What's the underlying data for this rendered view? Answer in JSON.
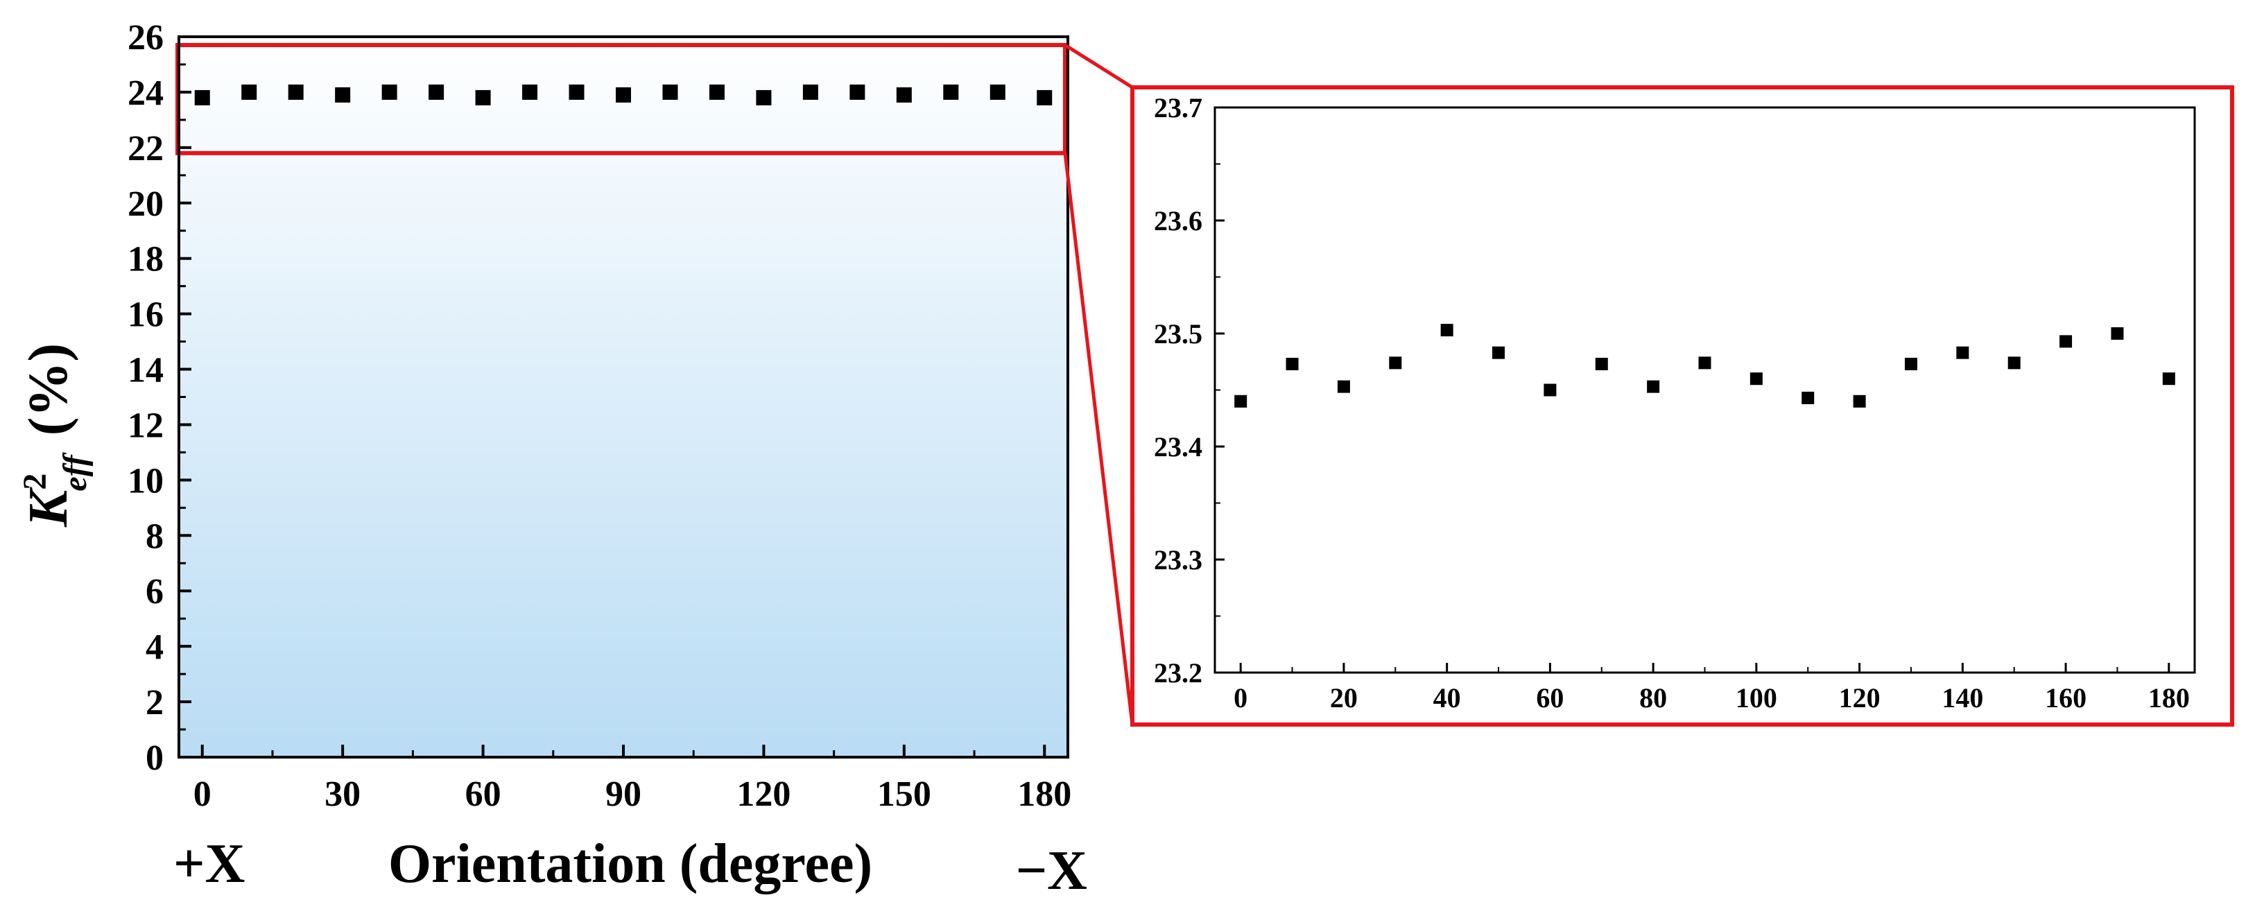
{
  "chart_data": [
    {
      "type": "scatter",
      "title": "",
      "xlabel": "Orientation (degree)",
      "ylabel": "K",
      "ylabel_sup": "2",
      "ylabel_sub": "eff",
      "ylabel_unit": "(%)",
      "x_end_labels": {
        "left": "+X",
        "right": "−X"
      },
      "xlim": [
        -5,
        185
      ],
      "ylim": [
        0,
        26
      ],
      "xticks": [
        0,
        30,
        60,
        90,
        120,
        150,
        180
      ],
      "yticks": [
        0,
        2,
        4,
        6,
        8,
        10,
        12,
        14,
        16,
        18,
        20,
        22,
        24,
        26
      ],
      "background": "vertical gradient, white at top to light blue (#b9dcf4) at bottom",
      "highlight_box": {
        "y_range": [
          21.8,
          25.7
        ],
        "color": "#e8141b"
      },
      "grid": false,
      "legend": "none",
      "series": [
        {
          "x": [
            0,
            10,
            20,
            30,
            40,
            50,
            60,
            70,
            80,
            90,
            100,
            110,
            120,
            130,
            140,
            150,
            160,
            170,
            180
          ],
          "y": [
            23.8,
            24.0,
            24.0,
            23.9,
            24.0,
            24.0,
            23.8,
            24.0,
            24.0,
            23.9,
            24.0,
            24.0,
            23.8,
            24.0,
            24.0,
            23.9,
            24.0,
            24.0,
            23.8
          ],
          "marker": "square",
          "color": "#000000"
        }
      ]
    },
    {
      "type": "scatter",
      "title": "",
      "xlabel": "",
      "ylabel": "",
      "xlim": [
        -5,
        185
      ],
      "ylim": [
        23.2,
        23.7
      ],
      "xticks": [
        0,
        20,
        40,
        60,
        80,
        100,
        120,
        140,
        160,
        180
      ],
      "yticks": [
        23.2,
        23.3,
        23.4,
        23.5,
        23.6,
        23.7
      ],
      "frame_color": "#e8141b",
      "grid": false,
      "legend": "none",
      "series": [
        {
          "x": [
            0,
            10,
            20,
            30,
            40,
            50,
            60,
            70,
            80,
            90,
            100,
            110,
            120,
            130,
            140,
            150,
            160,
            170,
            180
          ],
          "y": [
            23.44,
            23.473,
            23.453,
            23.474,
            23.503,
            23.483,
            23.45,
            23.473,
            23.453,
            23.474,
            23.46,
            23.443,
            23.44,
            23.473,
            23.483,
            23.474,
            23.493,
            23.5,
            23.46
          ],
          "marker": "square",
          "color": "#000000"
        }
      ]
    }
  ]
}
